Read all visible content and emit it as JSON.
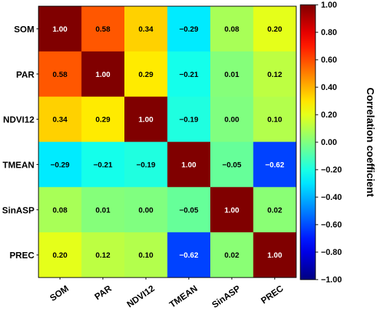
{
  "chart_data": {
    "type": "heatmap",
    "rows": [
      "SOM",
      "PAR",
      "NDVI12",
      "TMEAN",
      "SinASP",
      "PREC"
    ],
    "columns": [
      "SOM",
      "PAR",
      "NDVI12",
      "TMEAN",
      "SinASP",
      "PREC"
    ],
    "values": [
      [
        1.0,
        0.58,
        0.34,
        -0.29,
        0.08,
        0.2
      ],
      [
        0.58,
        1.0,
        0.29,
        -0.21,
        0.01,
        0.12
      ],
      [
        0.34,
        0.29,
        1.0,
        -0.19,
        0.0,
        0.1
      ],
      [
        -0.29,
        -0.21,
        -0.19,
        1.0,
        -0.05,
        -0.62
      ],
      [
        0.08,
        0.01,
        0.0,
        -0.05,
        1.0,
        0.02
      ],
      [
        0.2,
        0.12,
        0.1,
        -0.62,
        0.02,
        1.0
      ]
    ],
    "value_labels": [
      [
        "1.00",
        "0.58",
        "0.34",
        "−0.29",
        "0.08",
        "0.20"
      ],
      [
        "0.58",
        "1.00",
        "0.29",
        "−0.21",
        "0.01",
        "0.12"
      ],
      [
        "0.34",
        "0.29",
        "1.00",
        "−0.19",
        "0.00",
        "0.10"
      ],
      [
        "−0.29",
        "−0.21",
        "−0.19",
        "1.00",
        "−0.05",
        "−0.62"
      ],
      [
        "0.08",
        "0.01",
        "0.00",
        "−0.05",
        "1.00",
        "0.02"
      ],
      [
        "0.20",
        "0.12",
        "0.10",
        "−0.62",
        "0.02",
        "1.00"
      ]
    ],
    "colorscale": "jet",
    "vmin": -1.0,
    "vmax": 1.0,
    "colorbar": {
      "label": "Correlation coefficient",
      "ticks": [
        1.0,
        0.8,
        0.6,
        0.4,
        0.2,
        0.0,
        -0.2,
        -0.4,
        -0.6,
        -0.8,
        -1.0
      ],
      "tick_labels": [
        "1.00",
        "0.80",
        "0.60",
        "0.40",
        "0.20",
        "0.00",
        "−0.20",
        "−0.40",
        "−0.60",
        "−0.80",
        "−1.00"
      ],
      "placement": "right"
    },
    "grid": false,
    "light_text_for_cells": [
      1.0,
      -0.62
    ]
  }
}
